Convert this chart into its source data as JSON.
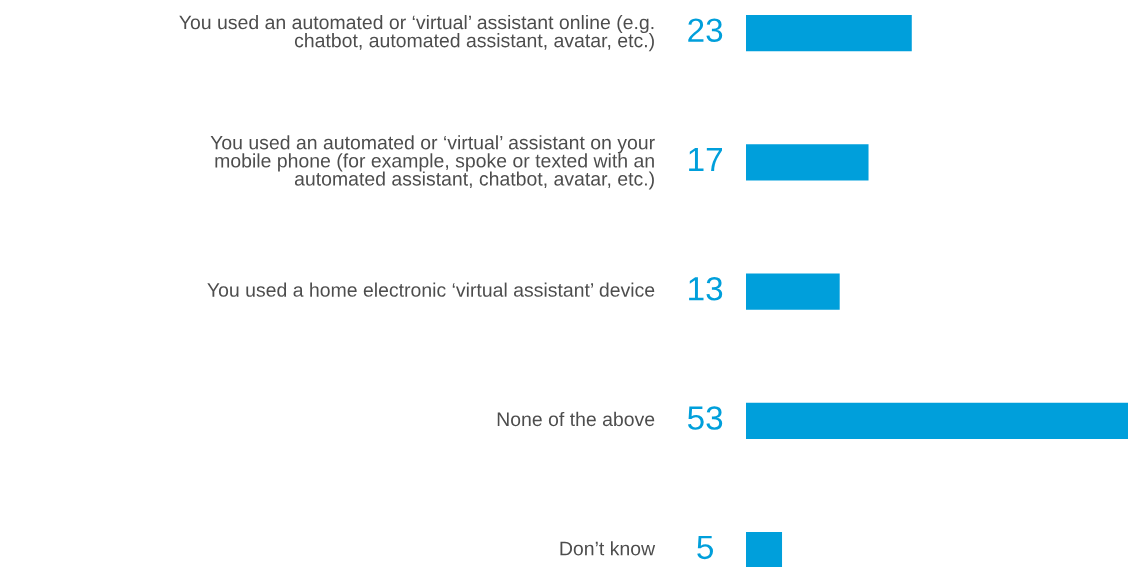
{
  "chart_data": {
    "type": "bar",
    "orientation": "horizontal",
    "categories": [
      "You used an automated or ‘virtual’ assistant online (e.g.\nchatbot, automated assistant, avatar, etc.)",
      "You used an automated or ‘virtual’ assistant on your\nmobile phone (for example, spoke or texted with an\nautomated assistant, chatbot, avatar, etc.)",
      "You used a home electronic ‘virtual assistant’ device",
      "None of the above",
      "Don’t know"
    ],
    "values": [
      23,
      17,
      13,
      53,
      5
    ],
    "color": "#009fdb",
    "data_labels": true
  }
}
